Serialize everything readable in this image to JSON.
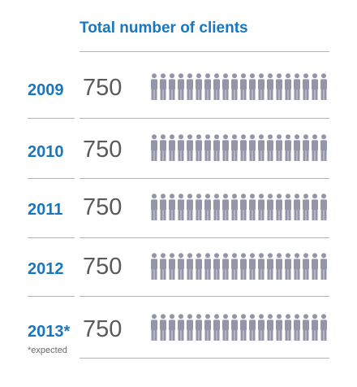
{
  "chart_data": {
    "type": "table",
    "title": "Total number of clients",
    "colors": {
      "accent": "#1a76bd",
      "value": "#5a5a5a",
      "person": "#9495a9",
      "rule": "#b5b5b5"
    },
    "rows": [
      {
        "year": "2009",
        "value": 750,
        "value_label": "750",
        "icon_count": 20
      },
      {
        "year": "2010",
        "value": 750,
        "value_label": "750",
        "icon_count": 20
      },
      {
        "year": "2011",
        "value": 750,
        "value_label": "750",
        "icon_count": 20
      },
      {
        "year": "2012",
        "value": 750,
        "value_label": "750",
        "icon_count": 20
      },
      {
        "year": "2013*",
        "value": 750,
        "value_label": "750",
        "icon_count": 20
      }
    ],
    "note": "*expected",
    "icon": "person-icon"
  }
}
